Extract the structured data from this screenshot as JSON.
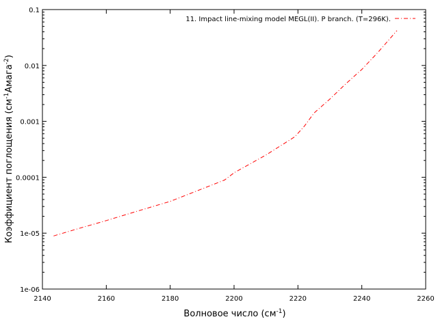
{
  "chart_data": {
    "type": "line",
    "xlabel": "Волновое число (см",
    "xlabel_sup": "-1",
    "xlabel_suffix": ")",
    "ylabel": "Коэффициент поглощения (см",
    "ylabel_sup1": "-1",
    "ylabel_mid": "Амага",
    "ylabel_sup2": "-2",
    "ylabel_suffix": ")",
    "xlim": [
      2140,
      2260
    ],
    "ylim": [
      1e-06,
      0.1
    ],
    "yscale": "log",
    "grid": false,
    "legend_position": "top-right",
    "x_ticks": [
      2140,
      2160,
      2180,
      2200,
      2220,
      2240,
      2260
    ],
    "x_tick_labels": [
      "2140",
      "2160",
      "2180",
      "2200",
      "2220",
      "2240",
      "2260"
    ],
    "y_ticks": [
      1e-06,
      1e-05,
      0.0001,
      0.001,
      0.01,
      0.1
    ],
    "y_tick_labels": [
      "1e-06",
      "1e-05",
      "0.0001",
      "0.001",
      "0.01",
      "0.1"
    ],
    "series": [
      {
        "name": "11. Impact line-mixing model MEGL(II). P branch. (T=296K).",
        "color": "#ff0000",
        "line_style": "dash-dot",
        "x": [
          2143.5,
          2150,
          2160,
          2170,
          2180,
          2190,
          2197,
          2200,
          2210,
          2219,
          2222,
          2225,
          2230,
          2235,
          2240,
          2245,
          2251
        ],
        "y": [
          8.9e-06,
          1.15e-05,
          1.68e-05,
          2.5e-05,
          3.7e-05,
          6.2e-05,
          8.9e-05,
          0.00012,
          0.00025,
          0.00053,
          0.00082,
          0.0014,
          0.0025,
          0.0047,
          0.0085,
          0.017,
          0.042
        ]
      }
    ]
  }
}
